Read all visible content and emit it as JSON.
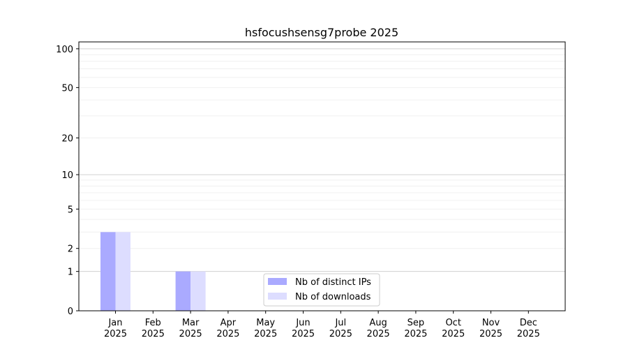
{
  "chart_data": {
    "type": "bar",
    "title": "hsfocushsensg7probe 2025",
    "xlabel": "",
    "ylabel": "",
    "yscale": "log(1+y)",
    "ylim": [
      0,
      113
    ],
    "ytick_labels": [
      "0",
      "1",
      "2",
      "5",
      "10",
      "20",
      "50",
      "100"
    ],
    "yticks": [
      0,
      1,
      2,
      5,
      10,
      20,
      50,
      100
    ],
    "categories": [
      "Jan\n2025",
      "Feb\n2025",
      "Mar\n2025",
      "Apr\n2025",
      "May\n2025",
      "Jun\n2025",
      "Jul\n2025",
      "Aug\n2025",
      "Sep\n2025",
      "Oct\n2025",
      "Nov\n2025",
      "Dec\n2025"
    ],
    "series": [
      {
        "name": "Nb of distinct IPs",
        "color": "#aaaaff",
        "values": [
          3,
          0,
          1,
          0,
          0,
          0,
          0,
          0,
          0,
          0,
          0,
          0
        ]
      },
      {
        "name": "Nb of downloads",
        "color": "#ddddff",
        "values": [
          3,
          0,
          1,
          0,
          0,
          0,
          0,
          0,
          0,
          0,
          0,
          0
        ]
      }
    ],
    "grid": true,
    "legend": "lower-center"
  }
}
